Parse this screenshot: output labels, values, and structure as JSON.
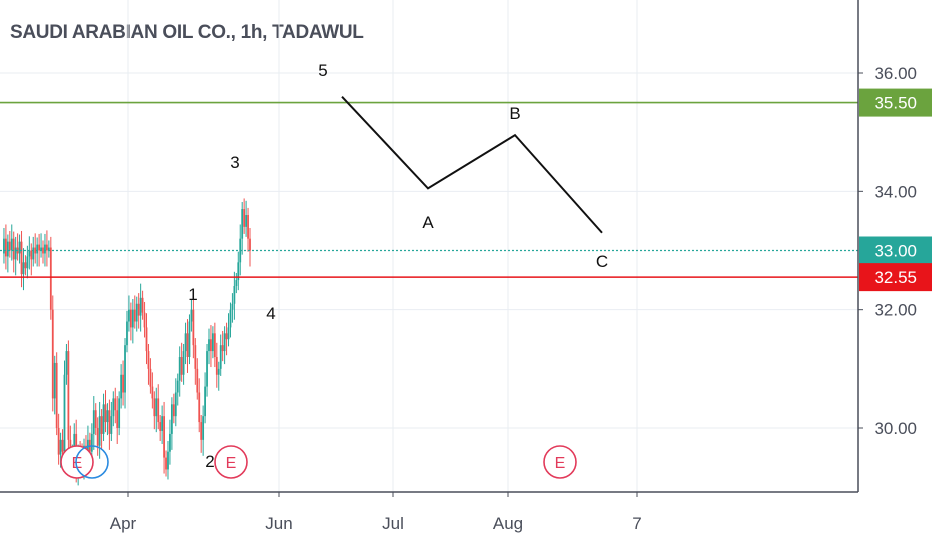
{
  "header": {
    "title": "SAUDI ARABIAN OIL CO., 1h, TADAWUL"
  },
  "colors": {
    "up": "#26a69a",
    "down": "#ef5350",
    "resistance": "#6ba33e",
    "support": "#e8141a",
    "current": "#26a69a",
    "grid": "#e9edf2",
    "axis": "#4a4e5a",
    "earnings": "#e23a5a",
    "dividend": "#2a8ae0",
    "wave": "#111111"
  },
  "chart_data": {
    "type": "candlestick",
    "title": "SAUDI ARABIAN OIL CO., 1h, TADAWUL",
    "ylim": [
      29.2,
      37.0
    ],
    "y_ticks": [
      30.0,
      32.0,
      34.0,
      36.0
    ],
    "y_tick_labels": [
      "30.00",
      "32.00",
      "34.00",
      "36.00"
    ],
    "x_tick_labels": [
      "Apr",
      "Jun",
      "Jul",
      "Aug",
      "7"
    ],
    "grid": true,
    "price_lines": [
      {
        "name": "resistance",
        "value": 35.5,
        "label": "35.50",
        "style": "solid"
      },
      {
        "name": "current",
        "value": 33.0,
        "label": "33.00",
        "style": "dotted"
      },
      {
        "name": "support",
        "value": 32.55,
        "label": "32.55",
        "style": "solid"
      }
    ],
    "wave_labels": [
      "1",
      "2",
      "3",
      "4",
      "5",
      "A",
      "B",
      "C"
    ],
    "projection_path": [
      {
        "label": "5",
        "y": 35.6
      },
      {
        "label": "A",
        "y": 34.05
      },
      {
        "label": "B",
        "y": 34.95
      },
      {
        "label": "C",
        "y": 33.3
      }
    ],
    "event_markers": [
      {
        "type": "earnings",
        "label": "E"
      },
      {
        "type": "dividend",
        "label": ""
      },
      {
        "type": "earnings",
        "label": "E"
      },
      {
        "type": "earnings",
        "label": "E"
      }
    ],
    "price_series": [
      32.95,
      33.2,
      32.9,
      33.15,
      33.0,
      33.2,
      32.85,
      33.05,
      32.95,
      33.15,
      32.6,
      32.8,
      32.7,
      32.9,
      33.0,
      32.85,
      33.05,
      32.95,
      33.1,
      33.0,
      33.05,
      32.95,
      33.1,
      33.0,
      33.05,
      32.0,
      30.5,
      31.1,
      30.0,
      29.55,
      29.8,
      29.6,
      30.9,
      31.3,
      29.8,
      29.5,
      29.6,
      29.9,
      29.3,
      29.6,
      29.5,
      29.35,
      29.7,
      29.5,
      29.8,
      29.6,
      29.9,
      30.3,
      30.0,
      29.7,
      30.2,
      29.9,
      30.4,
      30.1,
      30.3,
      29.9,
      30.2,
      30.5,
      30.3,
      30.0,
      30.5,
      30.9,
      30.6,
      31.4,
      31.8,
      32.0,
      31.7,
      32.0,
      31.8,
      32.1,
      31.9,
      32.2,
      31.95,
      31.7,
      31.3,
      31.0,
      30.7,
      30.5,
      30.2,
      30.5,
      30.1,
      29.95,
      30.2,
      29.5,
      29.3,
      29.6,
      29.9,
      30.4,
      30.2,
      30.6,
      30.8,
      31.2,
      30.9,
      31.3,
      31.6,
      31.2,
      31.8,
      32.0,
      31.4,
      31.0,
      30.6,
      30.1,
      29.8,
      30.2,
      30.7,
      31.3,
      31.5,
      31.3,
      31.6,
      31.2,
      30.9,
      31.0,
      31.4,
      31.3,
      31.6,
      31.5,
      31.7,
      32.0,
      32.1,
      32.4,
      32.5,
      32.8,
      33.2,
      33.7,
      33.4,
      33.6,
      33.2,
      33.0
    ]
  }
}
